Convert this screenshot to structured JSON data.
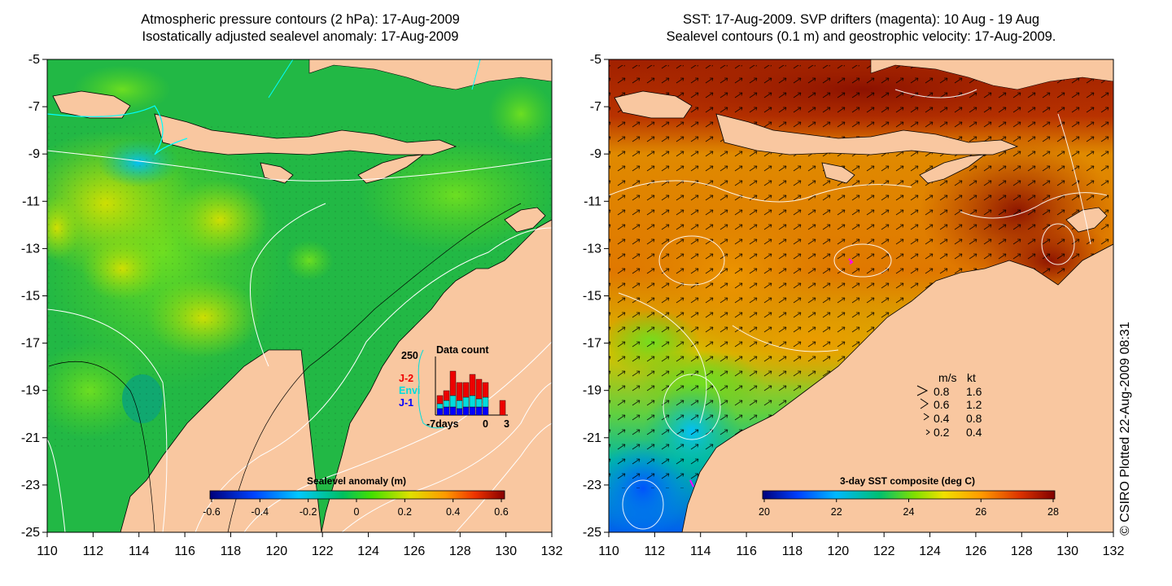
{
  "left_panel": {
    "title_line1": "Atmospheric pressure contours (2 hPa): 17-Aug-2009",
    "title_line2": "Isostatically adjusted sealevel anomaly: 17-Aug-2009",
    "colorbar_title": "Sealevel anomaly (m)",
    "colorbar_ticks": [
      "-0.6",
      "-0.4",
      "-0.2",
      "0",
      "0.2",
      "0.4",
      "0.6"
    ],
    "inset": {
      "title": "Data count",
      "ymax_label": "250",
      "labels": [
        {
          "text": "J-2",
          "color": "#ee0000"
        },
        {
          "text": "Envi",
          "color": "#00dddd"
        },
        {
          "text": "J-1",
          "color": "#0000ff"
        }
      ],
      "x_label_left": "-7days",
      "x_label_mid": "0",
      "x_label_right": "3"
    }
  },
  "right_panel": {
    "title_line1": "SST: 17-Aug-2009. SVP drifters (magenta): 10 Aug - 19 Aug",
    "title_line2": "Sealevel contours (0.1 m) and geostrophic velocity: 17-Aug-2009.",
    "colorbar_title": "3-day SST composite (deg C)",
    "colorbar_ticks": [
      "20",
      "22",
      "24",
      "26",
      "28"
    ],
    "velocity_legend": {
      "header_ms": "m/s",
      "header_kt": "kt",
      "rows": [
        {
          "ms": "0.8",
          "kt": "1.6"
        },
        {
          "ms": "0.6",
          "kt": "1.2"
        },
        {
          "ms": "0.4",
          "kt": "0.8"
        },
        {
          "ms": "0.2",
          "kt": "0.4"
        }
      ]
    }
  },
  "axes": {
    "lat_labels": [
      "-5",
      "-7",
      "-9",
      "-11",
      "-13",
      "-15",
      "-17",
      "-19",
      "-21",
      "-23",
      "-25"
    ],
    "lon_labels": [
      "110",
      "112",
      "114",
      "116",
      "118",
      "120",
      "122",
      "124",
      "126",
      "128",
      "130",
      "132"
    ]
  },
  "credit": "© CSIRO Plotted 22-Aug-2009 08:31",
  "colors": {
    "land": "#f9c7a0",
    "sla_ocean": "#22b845",
    "sst_warm": "#cc4400",
    "sst_hot": "#9a1a00",
    "drifter": "#ff00ff"
  }
}
